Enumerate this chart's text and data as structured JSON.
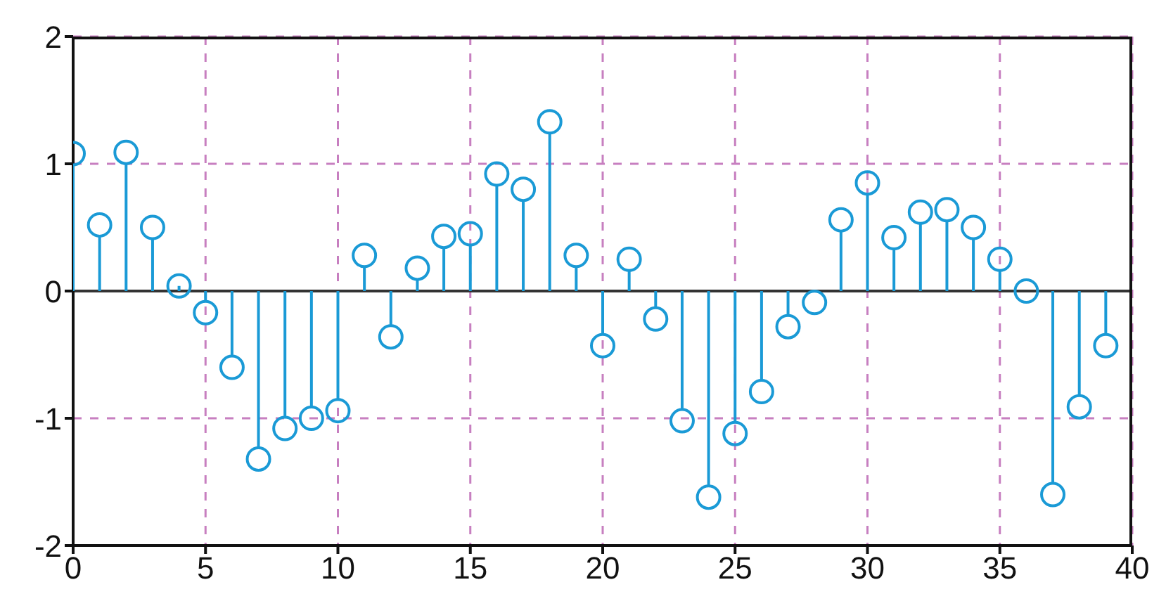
{
  "chart_data": {
    "type": "lollipop",
    "x": [
      0,
      1,
      2,
      3,
      4,
      5,
      6,
      7,
      8,
      9,
      10,
      11,
      12,
      13,
      14,
      15,
      16,
      17,
      18,
      19,
      20,
      21,
      22,
      23,
      24,
      25,
      26,
      27,
      28,
      29,
      30,
      31,
      32,
      33,
      34,
      35,
      36,
      37,
      38,
      39
    ],
    "series": [
      {
        "color": "#1a9ad6",
        "values": [
          1.08,
          0.52,
          1.09,
          0.5,
          0.04,
          -0.17,
          -0.6,
          -1.32,
          -1.08,
          -1.0,
          -0.94,
          0.28,
          -0.36,
          0.18,
          0.43,
          0.45,
          0.92,
          0.8,
          1.33,
          0.28,
          -0.43,
          0.25,
          -0.22,
          -1.02,
          -1.62,
          -1.12,
          -0.79,
          -0.28,
          -0.09,
          0.56,
          0.85,
          0.42,
          0.62,
          0.64,
          0.5,
          0.25,
          0,
          -1.6,
          -0.91,
          -0.43
        ]
      }
    ],
    "xlim": [
      0,
      40
    ],
    "xticks": [
      0,
      5,
      10,
      15,
      20,
      25,
      30,
      35,
      40
    ],
    "ylim": [
      -2,
      2
    ],
    "yticks": [
      -2,
      -1,
      0,
      1,
      2
    ],
    "grid": true,
    "marker": "circle"
  }
}
